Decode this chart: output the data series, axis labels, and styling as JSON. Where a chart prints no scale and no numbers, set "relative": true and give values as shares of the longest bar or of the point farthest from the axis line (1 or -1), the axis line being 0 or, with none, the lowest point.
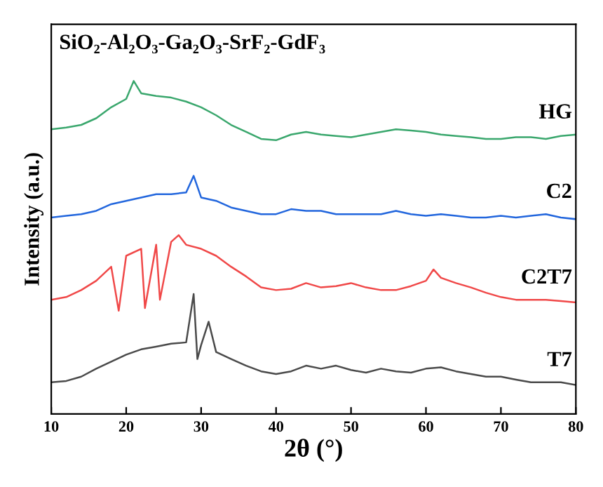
{
  "chart_data": {
    "type": "line",
    "relative": true,
    "title": "SiO₂-Al₂O₃-Ga₂O₃-SrF₂-GdF₃",
    "xlabel": "2θ (°)",
    "ylabel": "Intensity (a.u.)",
    "xlim": [
      10,
      80
    ],
    "xticks": [
      10,
      20,
      30,
      40,
      50,
      60,
      70,
      80
    ],
    "grid": false,
    "legend": false,
    "marker": "none",
    "line_style": "solid",
    "series": [
      {
        "name": "HG",
        "color": "#3aa76d",
        "x": [
          10,
          12,
          14,
          16,
          18,
          20,
          21,
          22,
          24,
          26,
          28,
          30,
          32,
          34,
          36,
          38,
          40,
          42,
          44,
          46,
          48,
          50,
          52,
          54,
          56,
          58,
          60,
          62,
          64,
          66,
          68,
          70,
          72,
          74,
          76,
          78,
          80
        ],
        "values": [
          0.855,
          0.86,
          0.868,
          0.888,
          0.921,
          0.946,
          1.0,
          0.963,
          0.955,
          0.95,
          0.938,
          0.921,
          0.897,
          0.868,
          0.847,
          0.826,
          0.822,
          0.839,
          0.847,
          0.839,
          0.835,
          0.831,
          0.839,
          0.847,
          0.855,
          0.851,
          0.847,
          0.839,
          0.835,
          0.831,
          0.826,
          0.826,
          0.831,
          0.831,
          0.826,
          0.835,
          0.839
        ]
      },
      {
        "name": "C2",
        "color": "#2266dd",
        "x": [
          10,
          12,
          14,
          16,
          18,
          20,
          22,
          24,
          26,
          28,
          29,
          30,
          32,
          34,
          36,
          38,
          40,
          42,
          44,
          46,
          48,
          50,
          52,
          54,
          56,
          58,
          60,
          62,
          64,
          66,
          68,
          70,
          72,
          74,
          76,
          78,
          80
        ],
        "values": [
          0.59,
          0.595,
          0.6,
          0.61,
          0.63,
          0.64,
          0.65,
          0.66,
          0.66,
          0.665,
          0.715,
          0.65,
          0.64,
          0.62,
          0.61,
          0.6,
          0.6,
          0.615,
          0.61,
          0.61,
          0.6,
          0.6,
          0.6,
          0.6,
          0.61,
          0.6,
          0.595,
          0.6,
          0.595,
          0.59,
          0.59,
          0.595,
          0.59,
          0.595,
          0.6,
          0.59,
          0.585
        ]
      },
      {
        "name": "C2T7",
        "color": "#f04848",
        "x": [
          10,
          12,
          14,
          16,
          18,
          19,
          20,
          22,
          22.5,
          24,
          24.5,
          26,
          27,
          28,
          30,
          32,
          34,
          36,
          38,
          40,
          42,
          44,
          46,
          48,
          50,
          52,
          54,
          56,
          58,
          60,
          61,
          62,
          64,
          66,
          68,
          70,
          72,
          74,
          76,
          78,
          80
        ],
        "values": [
          0.343,
          0.351,
          0.372,
          0.4,
          0.442,
          0.31,
          0.475,
          0.496,
          0.318,
          0.508,
          0.343,
          0.517,
          0.537,
          0.508,
          0.496,
          0.475,
          0.442,
          0.413,
          0.38,
          0.372,
          0.376,
          0.393,
          0.38,
          0.384,
          0.393,
          0.38,
          0.372,
          0.372,
          0.384,
          0.4,
          0.434,
          0.409,
          0.393,
          0.38,
          0.364,
          0.351,
          0.343,
          0.343,
          0.343,
          0.339,
          0.335
        ]
      },
      {
        "name": "T7",
        "color": "#4a4a4a",
        "x": [
          10,
          12,
          14,
          16,
          18,
          20,
          22,
          24,
          26,
          28,
          29,
          29.5,
          30,
          31,
          32,
          34,
          36,
          38,
          40,
          42,
          44,
          46,
          48,
          50,
          52,
          54,
          56,
          58,
          60,
          62,
          64,
          66,
          68,
          70,
          72,
          74,
          76,
          78,
          80
        ],
        "values": [
          0.095,
          0.099,
          0.112,
          0.136,
          0.157,
          0.178,
          0.194,
          0.202,
          0.211,
          0.215,
          0.36,
          0.165,
          0.207,
          0.277,
          0.186,
          0.165,
          0.145,
          0.128,
          0.12,
          0.128,
          0.145,
          0.136,
          0.145,
          0.132,
          0.124,
          0.136,
          0.128,
          0.124,
          0.136,
          0.14,
          0.128,
          0.12,
          0.112,
          0.112,
          0.103,
          0.095,
          0.095,
          0.095,
          0.087
        ]
      }
    ]
  }
}
